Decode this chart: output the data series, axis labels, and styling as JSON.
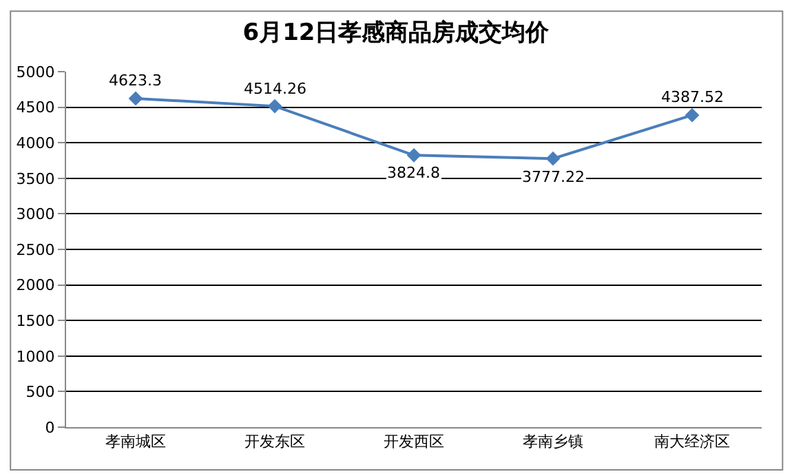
{
  "chart_data": {
    "type": "line",
    "title": "6月12日孝感商品房成交均价",
    "categories": [
      "孝南城区",
      "开发东区",
      "开发西区",
      "孝南乡镇",
      "南大经济区"
    ],
    "series": [
      {
        "color": "#4a7ebb",
        "values": [
          4623.3,
          4514.26,
          3824.8,
          3777.22,
          4387.52
        ]
      }
    ],
    "ylim": [
      0,
      5000
    ],
    "yticks": [
      0,
      500,
      1000,
      1500,
      2000,
      2500,
      3000,
      3500,
      4000,
      4500,
      5000
    ],
    "grid": "y",
    "legend": false,
    "marker": "diamond",
    "line_style": "solid",
    "data_labels": true
  }
}
